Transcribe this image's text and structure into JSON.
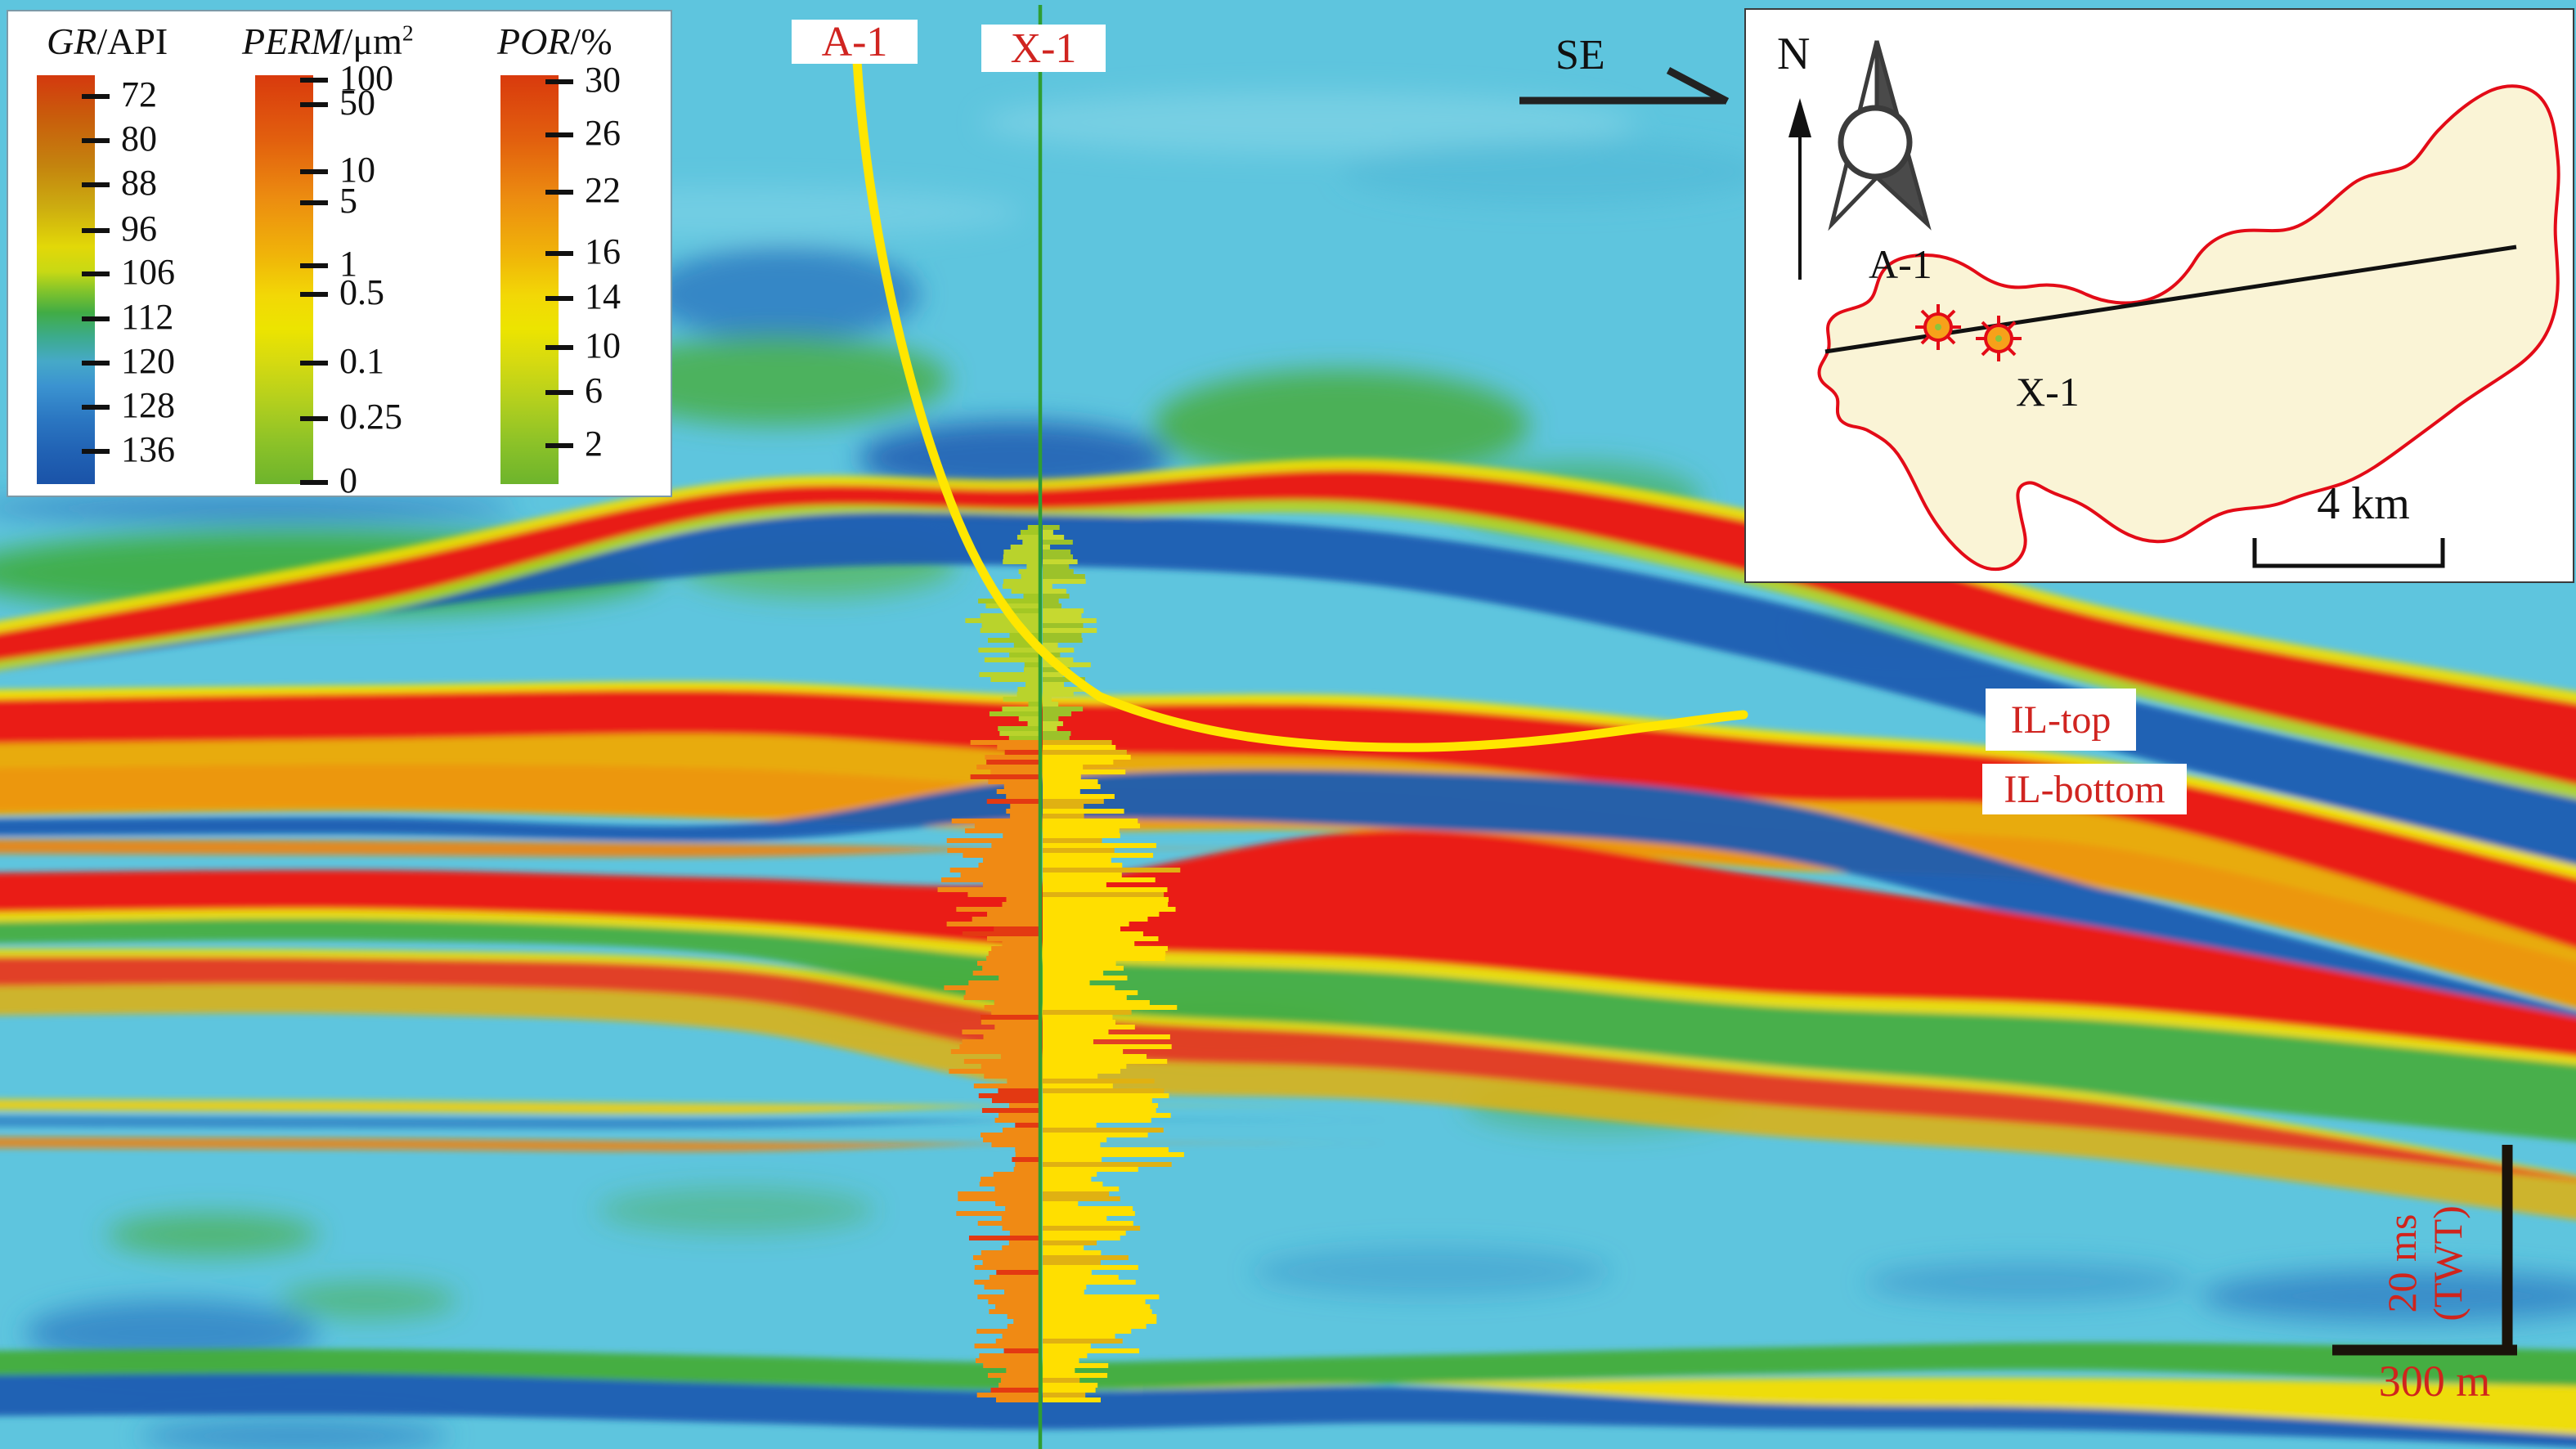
{
  "figure": {
    "direction_label": "SE",
    "well_labels": {
      "a1": "A-1",
      "x1": "X-1"
    },
    "markers": {
      "il_top": "IL-top",
      "il_bottom": "IL-bottom"
    },
    "scale_bar": {
      "vertical_line1": "20 ms",
      "vertical_line2": "(TWT)",
      "horizontal": "300 m"
    },
    "label_color": "#d02420",
    "trajectory_color": "#ffe600",
    "x1_line_color": "#2f9e33",
    "background_color": "#5ec5de"
  },
  "legend": {
    "colorbars": [
      {
        "id": "gr",
        "title_italic": "GR",
        "title_rest": "/API",
        "title_sup": "",
        "ticks": [
          {
            "label": "72",
            "pos": 0.052
          },
          {
            "label": "80",
            "pos": 0.16
          },
          {
            "label": "88",
            "pos": 0.268
          },
          {
            "label": "96",
            "pos": 0.38
          },
          {
            "label": "106",
            "pos": 0.486
          },
          {
            "label": "112",
            "pos": 0.596
          },
          {
            "label": "120",
            "pos": 0.704
          },
          {
            "label": "128",
            "pos": 0.812
          },
          {
            "label": "136",
            "pos": 0.92
          }
        ],
        "gradient": [
          "#d4390e 0%",
          "#c95c0c 10%",
          "#c4830e 22%",
          "#ccab10 32%",
          "#e2d808 42%",
          "#c8d914 48%",
          "#7fc32c 53%",
          "#41ac44 58%",
          "#3cab8c 64%",
          "#46a9c8 70%",
          "#3b93d0 76%",
          "#2b77c2 84%",
          "#2162b4 92%",
          "#1a53a8 100%"
        ]
      },
      {
        "id": "perm",
        "title_italic": "PERM",
        "title_rest": "/μm",
        "title_sup": "2",
        "ticks": [
          {
            "label": "100",
            "pos": 0.012
          },
          {
            "label": "50",
            "pos": 0.072
          },
          {
            "label": "10",
            "pos": 0.236
          },
          {
            "label": "5",
            "pos": 0.312
          },
          {
            "label": "1",
            "pos": 0.466
          },
          {
            "label": "0.5",
            "pos": 0.536
          },
          {
            "label": "0.1",
            "pos": 0.704
          },
          {
            "label": "0.25",
            "pos": 0.84
          },
          {
            "label": "0",
            "pos": 0.995
          }
        ],
        "gradient": [
          "#d93a0d 0%",
          "#e2600e 16%",
          "#ec8c10 30%",
          "#f0b409 44%",
          "#f2d806 54%",
          "#ece400 62%",
          "#d6da10 70%",
          "#b2cf1e 80%",
          "#8cc228 90%",
          "#6db42c 100%"
        ]
      },
      {
        "id": "por",
        "title_italic": "POR",
        "title_rest": "/%",
        "title_sup": "",
        "ticks": [
          {
            "label": "30",
            "pos": 0.016
          },
          {
            "label": "26",
            "pos": 0.146
          },
          {
            "label": "22",
            "pos": 0.286
          },
          {
            "label": "16",
            "pos": 0.436
          },
          {
            "label": "14",
            "pos": 0.546
          },
          {
            "label": "10",
            "pos": 0.666
          },
          {
            "label": "6",
            "pos": 0.776
          },
          {
            "label": "2",
            "pos": 0.906
          }
        ],
        "gradient": [
          "#d93a0d 0%",
          "#e2600e 16%",
          "#ec8c10 30%",
          "#f0b409 44%",
          "#f2d806 54%",
          "#ece400 62%",
          "#d6da10 70%",
          "#b2cf1e 80%",
          "#8cc228 90%",
          "#6db42c 100%"
        ]
      }
    ]
  },
  "inset": {
    "north_label": "N",
    "well_labels": {
      "a1": "A-1",
      "x1": "X-1"
    },
    "scale_label": "4 km"
  }
}
